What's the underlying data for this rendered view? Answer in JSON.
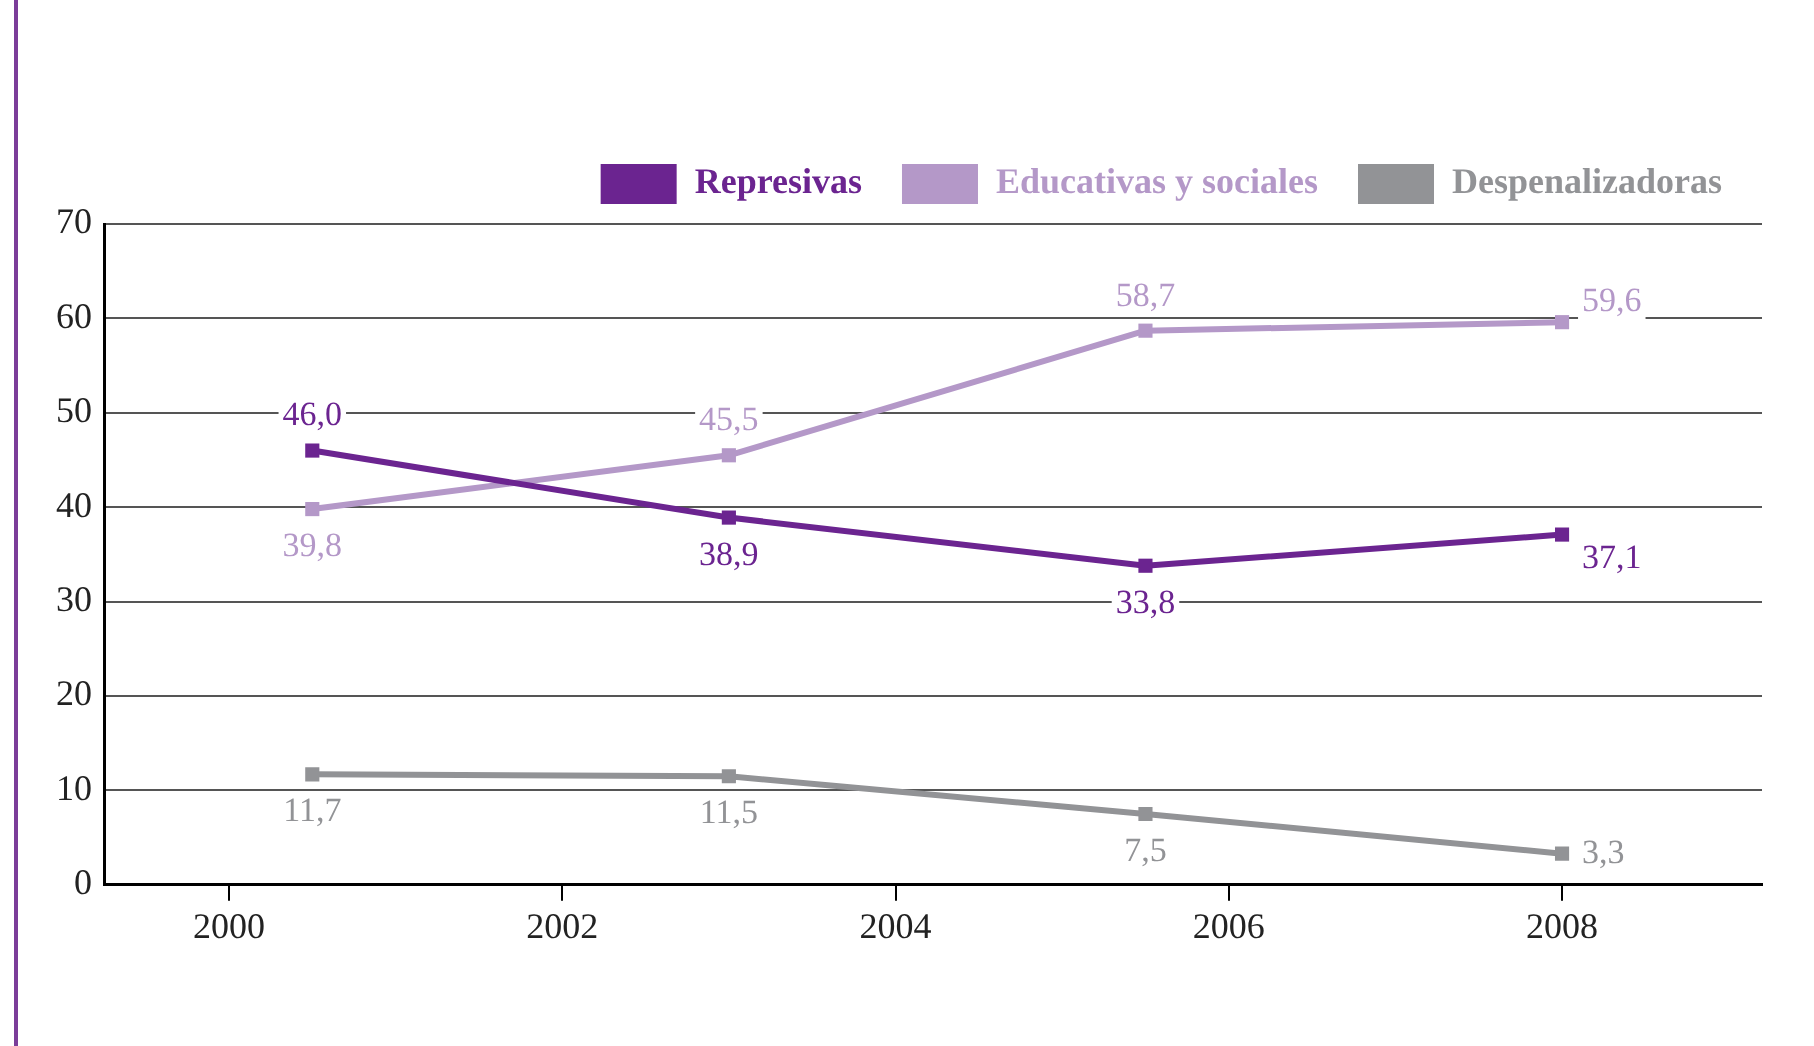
{
  "chart_data": {
    "type": "line",
    "x": [
      2000.5,
      2003,
      2005.5,
      2008
    ],
    "series": [
      {
        "name": "Represivas",
        "color": "#6b2490",
        "values": [
          46.0,
          38.9,
          33.8,
          37.1
        ],
        "value_labels": [
          "46,0",
          "38,9",
          "33,8",
          "37,1"
        ]
      },
      {
        "name": "Educativas y sociales",
        "color": "#b498c8",
        "values": [
          39.8,
          45.5,
          58.7,
          59.6
        ],
        "value_labels": [
          "39,8",
          "45,5",
          "58,7",
          "59,6"
        ]
      },
      {
        "name": "Despenalizadoras",
        "color": "#929396",
        "values": [
          11.7,
          11.5,
          7.5,
          3.3
        ],
        "value_labels": [
          "11,7",
          "11,5",
          "7,5",
          "3,3"
        ]
      }
    ],
    "xlim": [
      1999.25,
      2009.2
    ],
    "xticks": [
      2000,
      2002,
      2004,
      2006,
      2008
    ],
    "ylim": [
      0,
      70
    ],
    "yticks": [
      0,
      10,
      20,
      30,
      40,
      50,
      60,
      70
    ],
    "grid": "y",
    "legend": "top right",
    "marker": "square",
    "line_style": "solid"
  }
}
